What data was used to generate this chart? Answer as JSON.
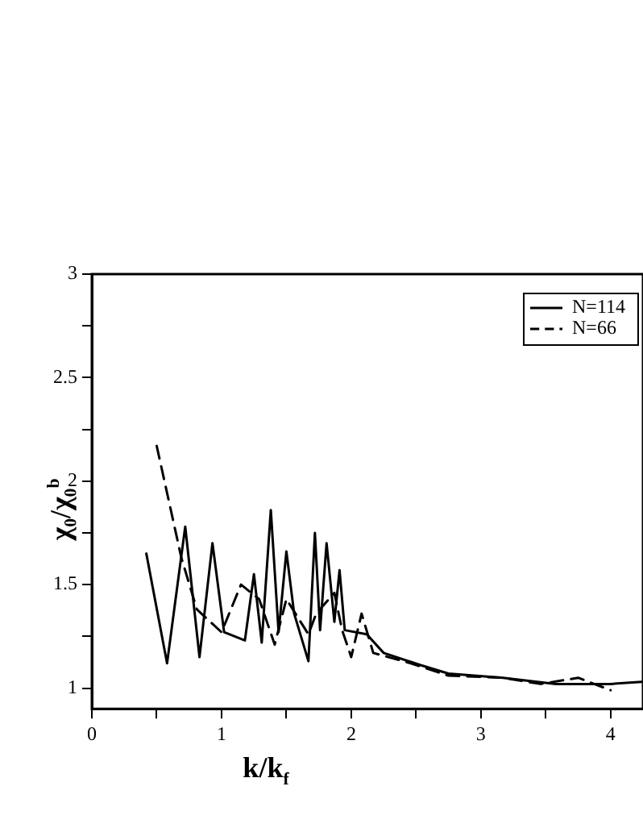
{
  "chart_data": {
    "type": "line",
    "xlabel": "k/k$_{f}$",
    "ylabel": "χ₀/χ₀$^{b}$",
    "xlim": [
      0,
      4.25
    ],
    "ylim": [
      0.9,
      3
    ],
    "xticks": [
      0,
      {
        "value": 0.5,
        "label": null
      },
      1,
      {
        "value": 1.5,
        "label": null
      },
      2,
      {
        "value": 2.5,
        "label": null
      },
      3,
      {
        "value": 3.5,
        "label": null
      },
      4
    ],
    "yticks": [
      1,
      {
        "value": 1.25,
        "label": null
      },
      1.5,
      {
        "value": 1.75,
        "label": null
      },
      2,
      {
        "value": 2.25,
        "label": null
      },
      2.5,
      {
        "value": 2.75,
        "label": null
      },
      3
    ],
    "grid": false,
    "legend": "top right",
    "marker": "none",
    "series": [
      {
        "name": "N=114",
        "color": "#000000",
        "line_style": "solid",
        "x": [
          0.42,
          0.58,
          0.72,
          0.83,
          0.93,
          1.02,
          1.18,
          1.25,
          1.31,
          1.38,
          1.44,
          1.5,
          1.56,
          1.67,
          1.72,
          1.76,
          1.81,
          1.87,
          1.91,
          1.95,
          2.12,
          2.25,
          2.54,
          2.75,
          3.17,
          3.58,
          4.0,
          4.24
        ],
        "values": [
          1.65,
          1.12,
          1.78,
          1.15,
          1.7,
          1.27,
          1.23,
          1.55,
          1.22,
          1.86,
          1.27,
          1.66,
          1.36,
          1.13,
          1.75,
          1.28,
          1.7,
          1.32,
          1.57,
          1.28,
          1.26,
          1.17,
          1.11,
          1.07,
          1.05,
          1.02,
          1.02,
          1.03
        ]
      },
      {
        "name": "N=66",
        "color": "#000000",
        "line_style": "dashed",
        "x": [
          0.5,
          0.69,
          0.81,
          1.0,
          1.15,
          1.29,
          1.41,
          1.5,
          1.67,
          1.73,
          1.87,
          1.93,
          2.0,
          2.08,
          2.17,
          2.46,
          2.75,
          3.17,
          3.46,
          3.75,
          4.0
        ],
        "values": [
          2.17,
          1.63,
          1.38,
          1.27,
          1.5,
          1.43,
          1.21,
          1.43,
          1.26,
          1.36,
          1.46,
          1.28,
          1.15,
          1.36,
          1.17,
          1.12,
          1.06,
          1.05,
          1.02,
          1.05,
          0.99
        ]
      }
    ]
  }
}
